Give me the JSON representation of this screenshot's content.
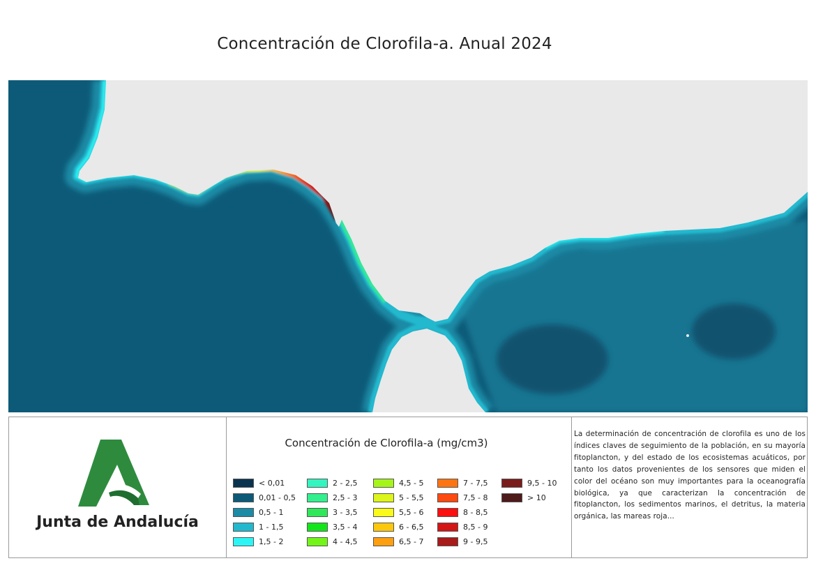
{
  "title": "Concentración de Clorofila-a. Anual 2024",
  "map": {
    "land_color": "#e9e9e9",
    "ocean_deep_color": "#0d5a78",
    "ocean_shelf_color": "#1b8ba6",
    "coast_color": "#22b9cf"
  },
  "logo": {
    "org_name": "Junta de Andalucía",
    "colors": {
      "green": "#2e8b3e",
      "dark_green": "#1f6e30"
    }
  },
  "legend": {
    "title": "Concentración de Clorofila-a (mg/cm3)",
    "columns": [
      [
        {
          "label": "< 0,01",
          "color": "#0a3350"
        },
        {
          "label": "0,01 - 0,5",
          "color": "#0d5a78"
        },
        {
          "label": "0,5 - 1",
          "color": "#1b8ba6"
        },
        {
          "label": "1 - 1,5",
          "color": "#22b9cf"
        },
        {
          "label": "1,5 - 2",
          "color": "#2ef5f5"
        }
      ],
      [
        {
          "label": "2 - 2,5",
          "color": "#33f5c0"
        },
        {
          "label": "2,5 - 3",
          "color": "#33ef8e"
        },
        {
          "label": "3 - 3,5",
          "color": "#2ee85a"
        },
        {
          "label": "3,5 - 4",
          "color": "#12e61a"
        },
        {
          "label": "4 - 4,5",
          "color": "#74f51a"
        }
      ],
      [
        {
          "label": "4,5 - 5",
          "color": "#a6f51a"
        },
        {
          "label": "5 - 5,5",
          "color": "#dcf51a"
        },
        {
          "label": "5,5 - 6",
          "color": "#fafa1a"
        },
        {
          "label": "6 - 6,5",
          "color": "#fcc80e"
        },
        {
          "label": "6,5 - 7",
          "color": "#fca012"
        }
      ],
      [
        {
          "label": "7 - 7,5",
          "color": "#fd7512"
        },
        {
          "label": "7,5 - 8",
          "color": "#fd4a10"
        },
        {
          "label": "8 - 8,5",
          "color": "#fb0f0f"
        },
        {
          "label": "8,5 - 9",
          "color": "#d31515"
        },
        {
          "label": "9 - 9,5",
          "color": "#a81b1b"
        }
      ],
      [
        {
          "label": "9,5 - 10",
          "color": "#7a1c1c"
        },
        {
          "label": "> 10",
          "color": "#4e1a1a"
        }
      ]
    ]
  },
  "description": "La determinación de concentración de clorofila es uno de los índices claves de seguimiento de la población, en su mayoría fitoplancton, y del estado de los ecosistemas acuáticos, por tanto los datos provenientes de los sensores que miden el color del océano son muy importantes para la oceanografía biológica, ya que caracterizan la concentración de fitoplancton, los sedimentos marinos, el detritus, la materia orgánica, las mareas roja..."
}
